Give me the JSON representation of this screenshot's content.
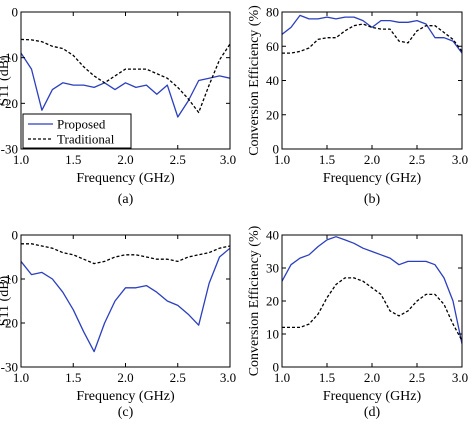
{
  "chart_data": [
    {
      "id": "a",
      "type": "line",
      "caption": "(a)",
      "xlabel": "Frequency (GHz)",
      "ylabel": "S11 (dB)",
      "xlim": [
        1.0,
        3.0
      ],
      "ylim": [
        -30,
        0
      ],
      "xticks": [
        "1.0",
        "1.5",
        "2.0",
        "2.5",
        "3.0"
      ],
      "yticks": [
        "0",
        "-10",
        "-20",
        "-30"
      ],
      "legend": {
        "placement": "bottom-left",
        "entries": [
          "Proposed",
          "Traditional"
        ]
      },
      "series": [
        {
          "name": "Proposed",
          "color": "#2b3fbf",
          "dash": "solid",
          "x": [
            1.0,
            1.1,
            1.2,
            1.3,
            1.4,
            1.5,
            1.6,
            1.7,
            1.8,
            1.9,
            2.0,
            2.1,
            2.2,
            2.3,
            2.4,
            2.5,
            2.6,
            2.7,
            2.8,
            2.9,
            3.0
          ],
          "y": [
            -9,
            -12.5,
            -21.5,
            -17,
            -15.5,
            -16,
            -16,
            -16.5,
            -15.5,
            -17,
            -15.5,
            -16.5,
            -16,
            -18,
            -16,
            -23,
            -19.5,
            -15,
            -14.5,
            -14,
            -14.5
          ]
        },
        {
          "name": "Traditional",
          "color": "#000000",
          "dash": "dashed",
          "x": [
            1.0,
            1.1,
            1.2,
            1.3,
            1.4,
            1.5,
            1.6,
            1.7,
            1.8,
            1.9,
            2.0,
            2.1,
            2.2,
            2.3,
            2.4,
            2.5,
            2.6,
            2.7,
            2.8,
            2.9,
            3.0
          ],
          "y": [
            -6,
            -6.1,
            -6.5,
            -7.5,
            -8,
            -9.5,
            -12,
            -14,
            -15.5,
            -14,
            -12.5,
            -12.5,
            -12.5,
            -13.5,
            -14.5,
            -16.5,
            -19,
            -22,
            -16,
            -10.5,
            -7
          ]
        }
      ]
    },
    {
      "id": "b",
      "type": "line",
      "caption": "(b)",
      "xlabel": "Frequency (GHz)",
      "ylabel": "Conversion Efficiency (%)",
      "xlim": [
        1.0,
        3.0
      ],
      "ylim": [
        0,
        80
      ],
      "xticks": [
        "1.0",
        "1.5",
        "2.0",
        "2.5",
        "3.0"
      ],
      "yticks": [
        "80",
        "60",
        "40",
        "20",
        "0"
      ],
      "series": [
        {
          "name": "",
          "color": "#2b3fbf",
          "dash": "solid",
          "x": [
            1.0,
            1.1,
            1.2,
            1.3,
            1.4,
            1.5,
            1.6,
            1.7,
            1.8,
            1.9,
            2.0,
            2.1,
            2.2,
            2.3,
            2.4,
            2.5,
            2.6,
            2.7,
            2.8,
            2.9,
            3.0
          ],
          "y": [
            67,
            71,
            78,
            76,
            76,
            77,
            76,
            77,
            77,
            75,
            71,
            75,
            75,
            74,
            74,
            75,
            73,
            65,
            65,
            63,
            56
          ]
        },
        {
          "name": "",
          "color": "#000000",
          "dash": "dashed",
          "x": [
            1.0,
            1.1,
            1.2,
            1.3,
            1.4,
            1.5,
            1.6,
            1.7,
            1.8,
            1.9,
            2.0,
            2.1,
            2.2,
            2.3,
            2.4,
            2.5,
            2.6,
            2.7,
            2.8,
            2.9,
            3.0
          ],
          "y": [
            56,
            56,
            57,
            59,
            64,
            65,
            65,
            69,
            72,
            73,
            71,
            70,
            70,
            63,
            62,
            69,
            72,
            72,
            68,
            64,
            57
          ]
        }
      ]
    },
    {
      "id": "c",
      "type": "line",
      "caption": "(c)",
      "xlabel": "Frequency (GHz)",
      "ylabel": "S11 (dB)",
      "xlim": [
        1.0,
        3.0
      ],
      "ylim": [
        -30,
        0
      ],
      "xticks": [
        "1.0",
        "1.5",
        "2.0",
        "2.5",
        "3.0"
      ],
      "yticks": [
        "0",
        "-10",
        "-20",
        "-30"
      ],
      "series": [
        {
          "name": "",
          "color": "#2b3fbf",
          "dash": "solid",
          "x": [
            1.0,
            1.1,
            1.2,
            1.3,
            1.4,
            1.5,
            1.6,
            1.7,
            1.8,
            1.9,
            2.0,
            2.1,
            2.2,
            2.3,
            2.4,
            2.5,
            2.6,
            2.7,
            2.8,
            2.9,
            3.0
          ],
          "y": [
            -6,
            -9,
            -8.5,
            -10,
            -13,
            -17,
            -22,
            -26.5,
            -20,
            -15,
            -12,
            -12,
            -11.5,
            -13,
            -15,
            -16,
            -18,
            -20.5,
            -11,
            -5,
            -3
          ]
        },
        {
          "name": "",
          "color": "#000000",
          "dash": "dashed",
          "x": [
            1.0,
            1.1,
            1.2,
            1.3,
            1.4,
            1.5,
            1.6,
            1.7,
            1.8,
            1.9,
            2.0,
            2.1,
            2.2,
            2.3,
            2.4,
            2.5,
            2.6,
            2.7,
            2.8,
            2.9,
            3.0
          ],
          "y": [
            -2,
            -2,
            -2.5,
            -3,
            -4,
            -4.5,
            -5.5,
            -6.5,
            -6,
            -5,
            -4.5,
            -4.5,
            -5,
            -5.5,
            -5.5,
            -6,
            -5,
            -4.5,
            -4,
            -3,
            -2.5
          ]
        }
      ]
    },
    {
      "id": "d",
      "type": "line",
      "caption": "(d)",
      "xlabel": "Frequency (GHz)",
      "ylabel": "Conversion Efficiency (%)",
      "xlim": [
        1.0,
        3.0
      ],
      "ylim": [
        0,
        40
      ],
      "xticks": [
        "1.0",
        "1.5",
        "2.0",
        "2.5",
        "3.0"
      ],
      "yticks": [
        "40",
        "30",
        "20",
        "10",
        "0"
      ],
      "series": [
        {
          "name": "",
          "color": "#2b3fbf",
          "dash": "solid",
          "x": [
            1.0,
            1.1,
            1.2,
            1.3,
            1.4,
            1.5,
            1.6,
            1.7,
            1.8,
            1.9,
            2.0,
            2.1,
            2.2,
            2.3,
            2.4,
            2.5,
            2.6,
            2.7,
            2.8,
            2.9,
            3.0
          ],
          "y": [
            26,
            31,
            33,
            34,
            36.5,
            38.5,
            39.5,
            38.5,
            37.5,
            36,
            35,
            34,
            33,
            31,
            32,
            32,
            32,
            31,
            27,
            20,
            7
          ]
        },
        {
          "name": "",
          "color": "#000000",
          "dash": "dashed",
          "x": [
            1.0,
            1.1,
            1.2,
            1.3,
            1.4,
            1.5,
            1.6,
            1.7,
            1.8,
            1.9,
            2.0,
            2.1,
            2.2,
            2.3,
            2.4,
            2.5,
            2.6,
            2.7,
            2.8,
            2.9,
            3.0
          ],
          "y": [
            12,
            12,
            12,
            13,
            16,
            21,
            25,
            27,
            27,
            26,
            24,
            22,
            17,
            15.5,
            17,
            20,
            22,
            22,
            19,
            13,
            8
          ]
        }
      ]
    }
  ]
}
